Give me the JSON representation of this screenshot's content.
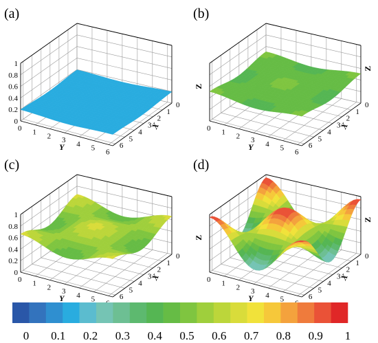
{
  "panels": [
    {
      "label": "(a)",
      "show_z_label": false
    },
    {
      "label": "(b)",
      "show_z_label": true
    },
    {
      "label": "(c)",
      "show_z_label": false
    },
    {
      "label": "(d)",
      "show_z_label": true
    }
  ],
  "chart_data": [
    {
      "type": "surface3d",
      "panel": "(a)",
      "xlabel": "X",
      "ylabel": "Y",
      "zlabel": "",
      "x_ticks": [
        "0",
        "1",
        "2",
        "3",
        "4",
        "5",
        "6"
      ],
      "y_ticks": [
        "0",
        "1",
        "2",
        "3",
        "4",
        "5",
        "6"
      ],
      "z_ticks": [
        "0",
        "0.2",
        "0.4",
        "0.6",
        "0.8",
        "1"
      ],
      "xlim": [
        0,
        6.283
      ],
      "ylim": [
        0,
        6.283
      ],
      "zlim": [
        0,
        1
      ],
      "surface": {
        "function": "mean + amplitude*cos(x)*cos(y)",
        "mean": 0.18,
        "amplitude": 0.015
      }
    },
    {
      "type": "surface3d",
      "panel": "(b)",
      "xlabel": "X",
      "ylabel": "Y",
      "zlabel": "Z",
      "x_ticks": [
        "0",
        "1",
        "2",
        "3",
        "4",
        "5",
        "6"
      ],
      "y_ticks": [
        "0",
        "1",
        "2",
        "3",
        "4",
        "5",
        "6"
      ],
      "z_ticks": [],
      "xlim": [
        0,
        6.283
      ],
      "ylim": [
        0,
        6.283
      ],
      "zlim": [
        0,
        1
      ],
      "surface": {
        "function": "mean + amplitude*cos(x)*cos(y)",
        "mean": 0.47,
        "amplitude": 0.04
      }
    },
    {
      "type": "surface3d",
      "panel": "(c)",
      "xlabel": "X",
      "ylabel": "Y",
      "zlabel": "",
      "x_ticks": [
        "0",
        "1",
        "2",
        "3",
        "4",
        "5",
        "6"
      ],
      "y_ticks": [
        "0",
        "1",
        "2",
        "3",
        "4",
        "5",
        "6"
      ],
      "z_ticks": [
        "0",
        "0.2",
        "0.4",
        "0.6",
        "0.8",
        "1"
      ],
      "xlim": [
        0,
        6.283
      ],
      "ylim": [
        0,
        6.283
      ],
      "zlim": [
        0,
        1
      ],
      "surface": {
        "function": "mean + amplitude*cos(x)*cos(y)",
        "mean": 0.56,
        "amplitude": 0.1
      }
    },
    {
      "type": "surface3d",
      "panel": "(d)",
      "xlabel": "X",
      "ylabel": "Y",
      "zlabel": "Z",
      "x_ticks": [
        "0",
        "1",
        "2",
        "3",
        "4",
        "5",
        "6"
      ],
      "y_ticks": [
        "0",
        "1",
        "2",
        "3",
        "4",
        "5",
        "6"
      ],
      "z_ticks": [],
      "xlim": [
        0,
        6.283
      ],
      "ylim": [
        0,
        6.283
      ],
      "zlim": [
        0,
        1
      ],
      "surface": {
        "function": "mean + amplitude*cos(x)*cos(y)",
        "mean": 0.6,
        "amplitude": 0.35
      }
    }
  ],
  "colorbar": {
    "ticks": [
      "0",
      "0.1",
      "0.2",
      "0.3",
      "0.4",
      "0.5",
      "0.6",
      "0.7",
      "0.8",
      "0.9",
      "1"
    ],
    "range": [
      0,
      1
    ],
    "colors": [
      "#2a57a8",
      "#3373bd",
      "#2f8fd0",
      "#29acdf",
      "#5bbccf",
      "#75c4b4",
      "#6dbf93",
      "#5db96f",
      "#55b653",
      "#66bc45",
      "#7fc540",
      "#9fcf3c",
      "#bcd63a",
      "#d9dc3a",
      "#f1e23a",
      "#f6c83a",
      "#f4a23d",
      "#ef7b3c",
      "#ea5237",
      "#e02727"
    ]
  }
}
